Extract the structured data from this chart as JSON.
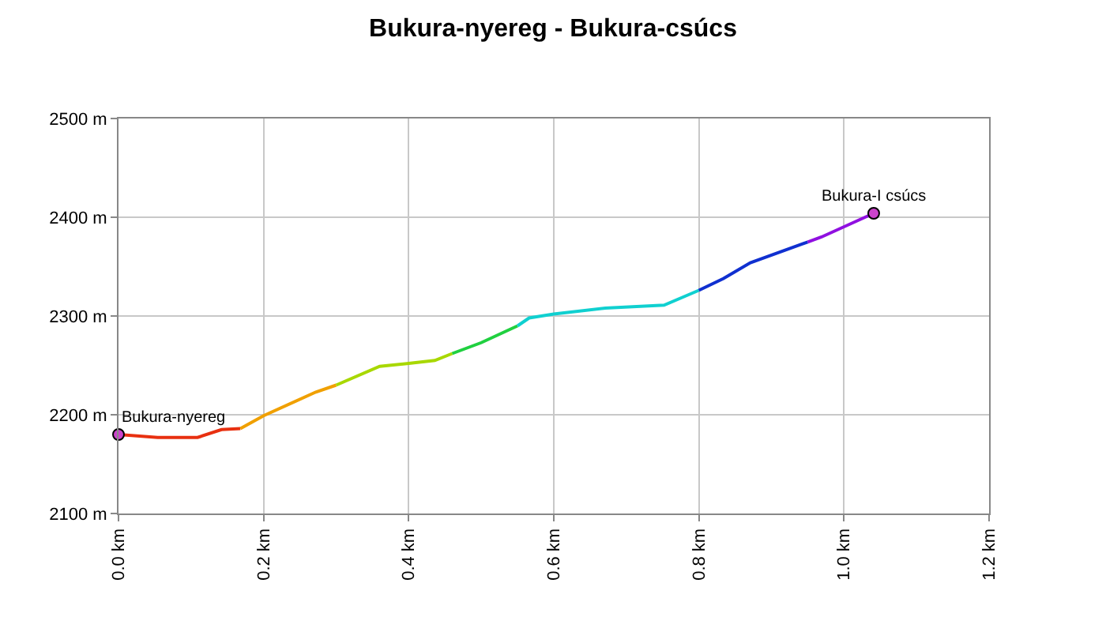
{
  "chart_data": {
    "type": "line",
    "title": "Bukura-nyereg - Bukura-csúcs",
    "xlim": [
      0,
      1.2
    ],
    "xticks": [
      {
        "value": 0,
        "label": "0.0 km"
      },
      {
        "value": 0.2,
        "label": "0.2 km"
      },
      {
        "value": 0.4,
        "label": "0.4 km"
      },
      {
        "value": 0.6,
        "label": "0.6 km"
      },
      {
        "value": 0.8,
        "label": "0.8 km"
      },
      {
        "value": 1.0,
        "label": "1.0 km"
      },
      {
        "value": 1.2,
        "label": "1.2 km"
      }
    ],
    "ylim": [
      2100,
      2500
    ],
    "yticks": [
      {
        "value": 2100,
        "label": "2100 m"
      },
      {
        "value": 2200,
        "label": "2200 m"
      },
      {
        "value": 2300,
        "label": "2300 m"
      },
      {
        "value": 2400,
        "label": "2400 m"
      },
      {
        "value": 2500,
        "label": "2500 m"
      }
    ],
    "grid": true,
    "line_style": "solid",
    "series": [
      {
        "color": "#e83010",
        "x": [
          0,
          0.054,
          0.109,
          0.142,
          0.168
        ],
        "values": [
          2180,
          2177,
          2177,
          2185,
          2186
        ]
      },
      {
        "color": "#f0a000",
        "x": [
          0.168,
          0.2,
          0.272,
          0.3
        ],
        "values": [
          2186,
          2199,
          2223,
          2230
        ]
      },
      {
        "color": "#a8d800",
        "x": [
          0.3,
          0.36,
          0.4,
          0.436,
          0.46
        ],
        "values": [
          2230,
          2249,
          2252,
          2255,
          2262
        ]
      },
      {
        "color": "#20d040",
        "x": [
          0.46,
          0.5,
          0.55
        ],
        "values": [
          2262,
          2273,
          2290
        ]
      },
      {
        "color": "#10d0d0",
        "x": [
          0.55,
          0.566,
          0.6,
          0.671,
          0.752,
          0.8
        ],
        "values": [
          2290,
          2298,
          2302,
          2308,
          2311,
          2326
        ]
      },
      {
        "color": "#1030d0",
        "x": [
          0.8,
          0.834,
          0.871,
          0.95
        ],
        "values": [
          2326,
          2338,
          2354,
          2375
        ]
      },
      {
        "color": "#9010e0",
        "x": [
          0.95,
          0.969,
          1.041
        ],
        "values": [
          2375,
          2380,
          2404
        ]
      },
      {
        "type": "scatter",
        "marker": "circle",
        "color": "#cc44cc",
        "x": [
          0,
          1.041
        ],
        "values": [
          2180,
          2404
        ]
      }
    ],
    "annotations": [
      {
        "text": "Bukura-nyereg",
        "x": 0,
        "y": 2180
      },
      {
        "text": "Bukura-I csúcs",
        "x": 1.041,
        "y": 2404
      }
    ]
  }
}
